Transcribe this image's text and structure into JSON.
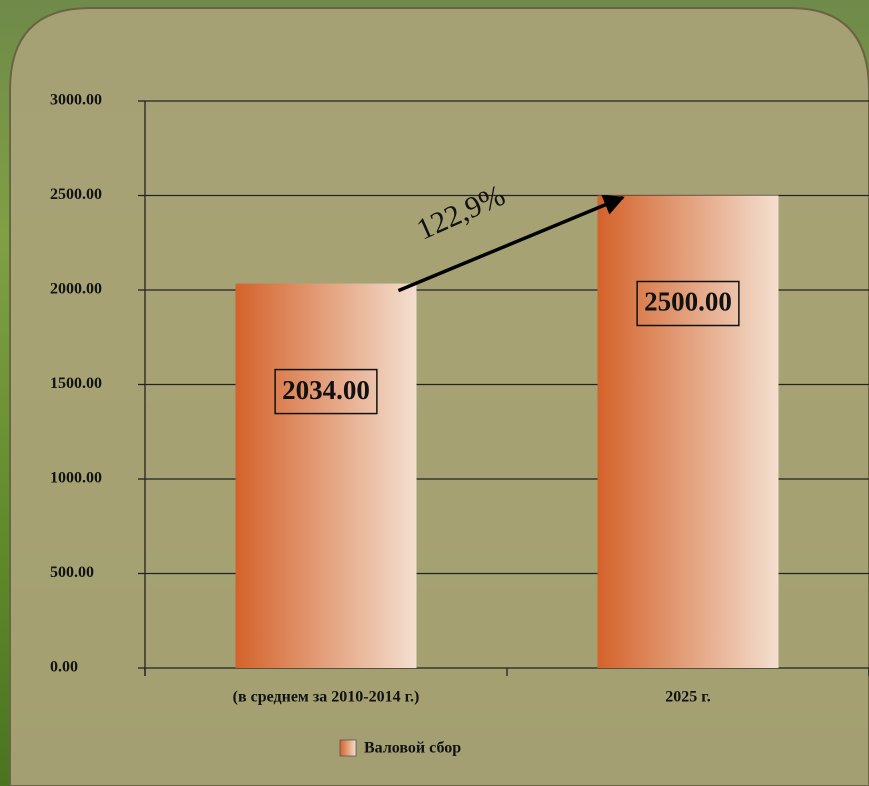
{
  "chart_data": {
    "type": "bar",
    "categories": [
      "(в среднем за 2010-2014 г.)",
      "2025 г."
    ],
    "series": [
      {
        "name": "Валовой сбор",
        "color": "#d4622a",
        "values": [
          2034,
          2500
        ],
        "value_labels": [
          "2034.00",
          "2500.00"
        ]
      }
    ],
    "ylim": [
      0,
      3000
    ],
    "yticks": [
      {
        "value": 0,
        "label": "0.00"
      },
      {
        "value": 500,
        "label": "500.00"
      },
      {
        "value": 1000,
        "label": "1000.00"
      },
      {
        "value": 1500,
        "label": "1500.00"
      },
      {
        "value": 2000,
        "label": "2000.00"
      },
      {
        "value": 2500,
        "label": "2500.00"
      },
      {
        "value": 3000,
        "label": "3000.00"
      }
    ],
    "grid": true,
    "legend": "bottom",
    "annotation": "122,9%"
  }
}
